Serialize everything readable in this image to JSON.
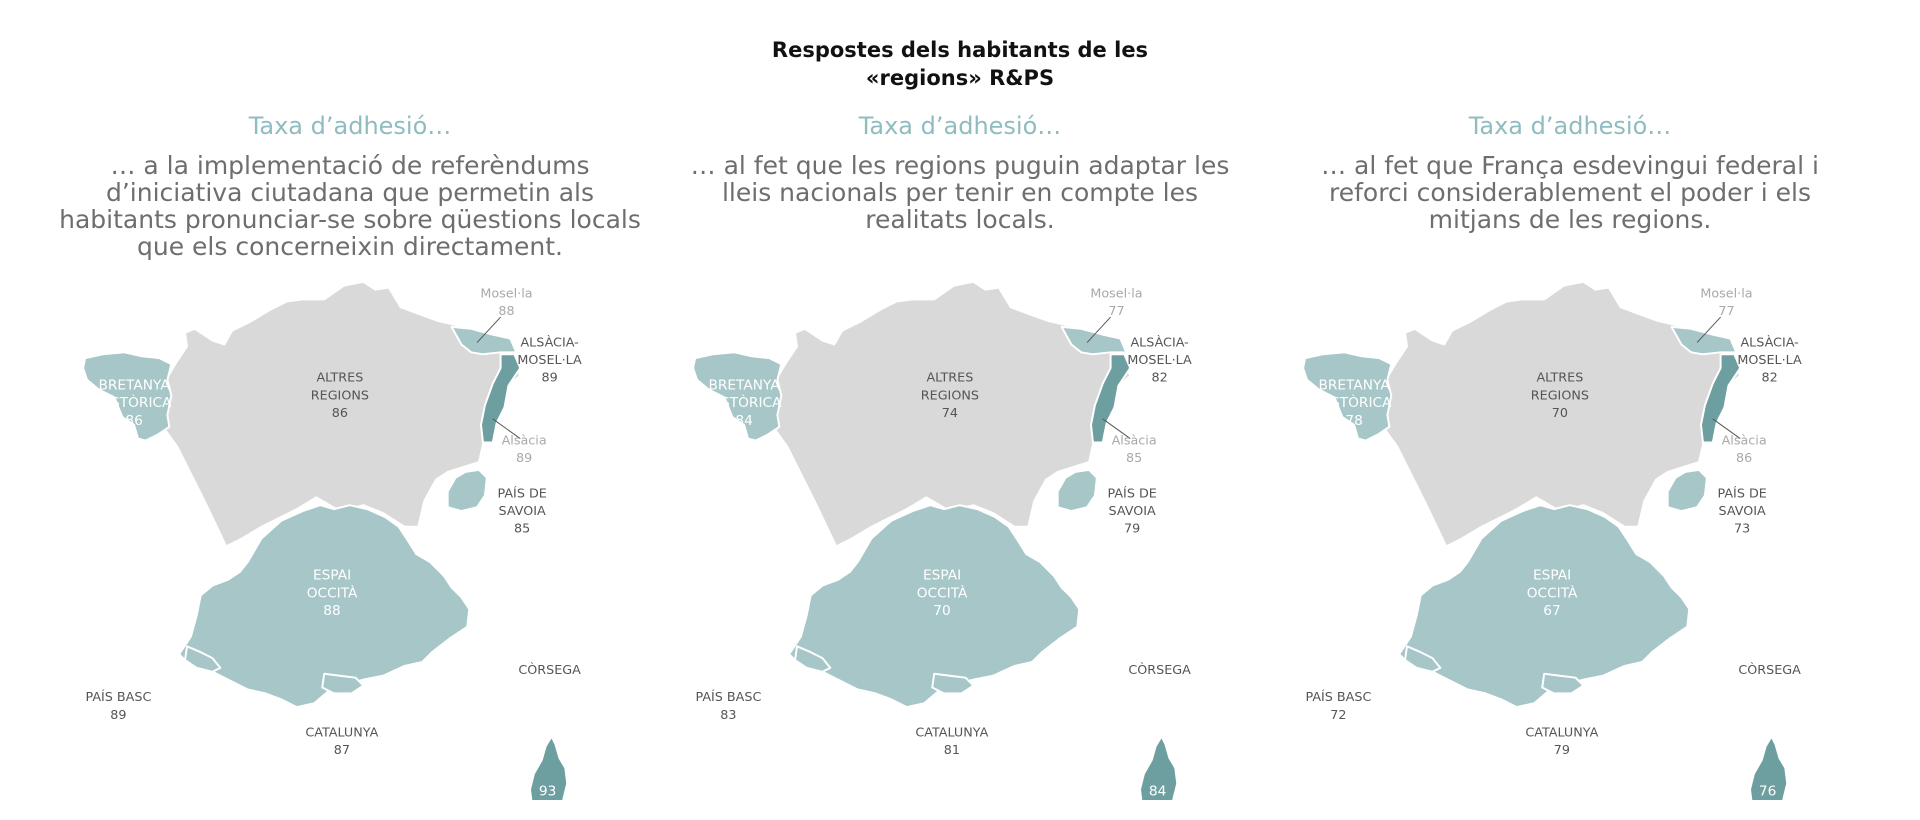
{
  "title": {
    "line1": "Respostes dels habitants de les",
    "line2": "«regions» R&PS"
  },
  "colors": {
    "other_regions": "#d9d9d9",
    "region_light": "#a6c6c8",
    "region_dark": "#6e9fa0",
    "kicker": "#8fbcc0"
  },
  "labels": {
    "altres": [
      "ALTRES",
      "REGIONS"
    ],
    "bretanya": [
      "BRETANYA",
      "HISTÒRICA"
    ],
    "espai": [
      "ESPAI",
      "OCCITÀ"
    ],
    "savoia": [
      "PAÍS DE",
      "SAVOIA"
    ],
    "alsacia_moselle": [
      "ALSÀCIA-",
      "MOSEL·LA"
    ],
    "mosella": "Mosel·la",
    "alsacia": "Alsàcia",
    "pais_basc": "PAÍS BASC",
    "catalunya": "CATALUNYA",
    "corsega": "CÒRSEGA"
  },
  "panels": [
    {
      "kicker": "Taxa d’adhesió…",
      "question_lines": [
        "… a la implementació de referèndums",
        "d’iniciativa ciutadana que permetin als",
        "habitants pronunciar-se sobre qüestions locals",
        "que els concerneixin directament."
      ],
      "values": {
        "altres": 86,
        "bretanya": 86,
        "espai": 88,
        "savoia": 85,
        "alsacia_moselle": 89,
        "mosella": 88,
        "alsacia": 89,
        "pais_basc": 89,
        "catalunya": 87,
        "corsega": 93
      }
    },
    {
      "kicker": "Taxa d’adhesió…",
      "question_lines": [
        "… al fet que les regions puguin adaptar les",
        "lleis nacionals per tenir en compte les",
        "realitats locals."
      ],
      "values": {
        "altres": 74,
        "bretanya": 84,
        "espai": 70,
        "savoia": 79,
        "alsacia_moselle": 82,
        "mosella": 77,
        "alsacia": 85,
        "pais_basc": 83,
        "catalunya": 81,
        "corsega": 84
      }
    },
    {
      "kicker": "Taxa d’adhesió…",
      "question_lines": [
        "… al fet que França esdevingui federal i",
        "reforci considerablement el poder i els",
        "mitjans de les regions."
      ],
      "values": {
        "altres": 70,
        "bretanya": 78,
        "espai": 67,
        "savoia": 73,
        "alsacia_moselle": 82,
        "mosella": 77,
        "alsacia": 86,
        "pais_basc": 72,
        "catalunya": 79,
        "corsega": 76
      }
    }
  ]
}
